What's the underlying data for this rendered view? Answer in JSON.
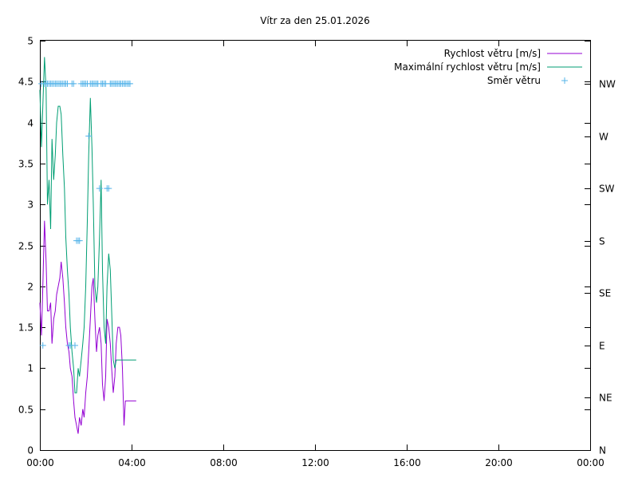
{
  "chart_data": {
    "type": "line",
    "title": "Vítr za den 25.01.2026",
    "xlabel": "",
    "ylabel": "",
    "x_unit": "hours",
    "xlim": [
      0,
      24
    ],
    "ylim": [
      0,
      5
    ],
    "x_ticks": [
      {
        "value": 0,
        "label": "00:00"
      },
      {
        "value": 4,
        "label": "04:00"
      },
      {
        "value": 8,
        "label": "08:00"
      },
      {
        "value": 12,
        "label": "12:00"
      },
      {
        "value": 16,
        "label": "16:00"
      },
      {
        "value": 20,
        "label": "20:00"
      },
      {
        "value": 24,
        "label": "00:00"
      }
    ],
    "y_ticks": [
      {
        "value": 0,
        "label": "0"
      },
      {
        "value": 0.5,
        "label": "0.5"
      },
      {
        "value": 1,
        "label": "1"
      },
      {
        "value": 1.5,
        "label": "1.5"
      },
      {
        "value": 2,
        "label": "2"
      },
      {
        "value": 2.5,
        "label": "2.5"
      },
      {
        "value": 3,
        "label": "3"
      },
      {
        "value": 3.5,
        "label": "3.5"
      },
      {
        "value": 4,
        "label": "4"
      },
      {
        "value": 4.5,
        "label": "4.5"
      },
      {
        "value": 5,
        "label": "5"
      }
    ],
    "y2_ticks": [
      {
        "value": 0,
        "label": "N"
      },
      {
        "value": 45,
        "label": "NE"
      },
      {
        "value": 90,
        "label": "E"
      },
      {
        "value": 135,
        "label": "SE"
      },
      {
        "value": 180,
        "label": "S"
      },
      {
        "value": 225,
        "label": "SW"
      },
      {
        "value": 270,
        "label": "W"
      },
      {
        "value": 315,
        "label": "NW"
      }
    ],
    "y2lim": [
      0,
      352
    ],
    "grid": false,
    "legend_position": "top-right",
    "series": [
      {
        "name": "Rychlost větru [m/s]",
        "color": "#9400d3",
        "x": [
          0,
          0.07,
          0.13,
          0.2,
          0.27,
          0.33,
          0.4,
          0.47,
          0.53,
          0.6,
          0.67,
          0.73,
          0.8,
          0.87,
          0.93,
          1.0,
          1.07,
          1.13,
          1.2,
          1.27,
          1.33,
          1.4,
          1.47,
          1.53,
          1.6,
          1.67,
          1.73,
          1.8,
          1.87,
          1.93,
          2.0,
          2.07,
          2.13,
          2.2,
          2.27,
          2.33,
          2.4,
          2.47,
          2.53,
          2.6,
          2.67,
          2.73,
          2.8,
          2.87,
          2.93,
          3.0,
          3.07,
          3.13,
          3.2,
          3.27,
          3.33,
          3.4,
          3.47,
          3.53,
          3.6,
          3.67,
          3.73,
          3.8,
          3.87,
          3.93,
          4.0,
          4.07,
          4.13,
          4.2
        ],
        "values": [
          1.8,
          1.4,
          2.0,
          2.8,
          2.3,
          1.7,
          1.7,
          1.8,
          1.3,
          1.6,
          1.7,
          1.9,
          2.0,
          2.1,
          2.3,
          2.1,
          1.8,
          1.5,
          1.3,
          1.2,
          1.0,
          0.9,
          0.6,
          0.4,
          0.3,
          0.2,
          0.4,
          0.3,
          0.5,
          0.4,
          0.7,
          0.9,
          1.2,
          1.6,
          2.0,
          2.1,
          1.6,
          1.2,
          1.4,
          1.5,
          1.3,
          0.8,
          0.6,
          0.9,
          1.6,
          1.5,
          1.3,
          1.0,
          0.7,
          0.9,
          1.3,
          1.5,
          1.5,
          1.4,
          1.0,
          0.3,
          0.6,
          0.6,
          0.6,
          0.6,
          0.6,
          0.6,
          0.6,
          0.6
        ]
      },
      {
        "name": "Maximální rychlost větru [m/s]",
        "color": "#009e73",
        "x": [
          0,
          0.07,
          0.13,
          0.2,
          0.27,
          0.33,
          0.4,
          0.47,
          0.53,
          0.6,
          0.67,
          0.73,
          0.8,
          0.87,
          0.93,
          1.0,
          1.07,
          1.13,
          1.2,
          1.27,
          1.33,
          1.4,
          1.47,
          1.53,
          1.6,
          1.67,
          1.73,
          1.8,
          1.87,
          1.93,
          2.0,
          2.07,
          2.13,
          2.2,
          2.27,
          2.33,
          2.4,
          2.47,
          2.53,
          2.6,
          2.67,
          2.73,
          2.8,
          2.87,
          2.93,
          3.0,
          3.07,
          3.13,
          3.2,
          3.27,
          3.33,
          3.4,
          3.47,
          3.53,
          3.6,
          3.67,
          3.73,
          3.8,
          3.87,
          3.93,
          4.0,
          4.07,
          4.13,
          4.2
        ],
        "values": [
          4.4,
          3.7,
          4.2,
          4.8,
          4.4,
          3.0,
          3.3,
          2.7,
          3.8,
          3.3,
          3.6,
          4.0,
          4.2,
          4.2,
          4.1,
          3.6,
          3.2,
          2.6,
          2.2,
          1.9,
          1.5,
          1.2,
          1.0,
          0.7,
          0.7,
          1.0,
          0.9,
          1.1,
          1.3,
          1.5,
          2.0,
          2.8,
          3.6,
          4.3,
          3.7,
          3.0,
          2.0,
          1.8,
          2.0,
          2.6,
          3.3,
          2.2,
          1.5,
          1.3,
          2.0,
          2.4,
          2.2,
          1.7,
          1.1,
          1.0,
          1.1,
          1.1,
          1.1,
          1.1,
          1.1,
          1.1,
          1.1,
          1.1,
          1.1,
          1.1,
          1.1,
          1.1,
          1.1,
          1.1
        ]
      },
      {
        "name": "Směr větru",
        "color": "#56b4e9",
        "marker": "+",
        "axis": "y2",
        "x": [
          0.07,
          0.13,
          0.2,
          0.27,
          0.33,
          0.4,
          0.47,
          0.53,
          0.6,
          0.67,
          0.73,
          0.8,
          0.87,
          0.93,
          1.0,
          1.07,
          1.13,
          1.2,
          1.27,
          1.33,
          1.4,
          1.47,
          1.53,
          1.6,
          1.67,
          1.73,
          1.8,
          1.87,
          1.93,
          2.0,
          2.07,
          2.13,
          2.2,
          2.27,
          2.33,
          2.4,
          2.47,
          2.53,
          2.6,
          2.67,
          2.73,
          2.8,
          2.87,
          2.93,
          3.0,
          3.07,
          3.13,
          3.2,
          3.27,
          3.33,
          3.4,
          3.47,
          3.53,
          3.6,
          3.67,
          3.73,
          3.8,
          3.87,
          3.93
        ],
        "values": [
          315,
          90,
          315,
          315,
          315,
          315,
          315,
          315,
          315,
          315,
          315,
          315,
          315,
          315,
          315,
          315,
          315,
          315,
          90,
          90,
          315,
          315,
          90,
          180,
          180,
          180,
          315,
          315,
          315,
          315,
          315,
          270,
          315,
          315,
          315,
          315,
          315,
          315,
          225,
          315,
          315,
          315,
          315,
          225,
          225,
          315,
          315,
          315,
          315,
          315,
          315,
          315,
          315,
          315,
          315,
          315,
          315,
          315,
          315
        ]
      }
    ]
  }
}
